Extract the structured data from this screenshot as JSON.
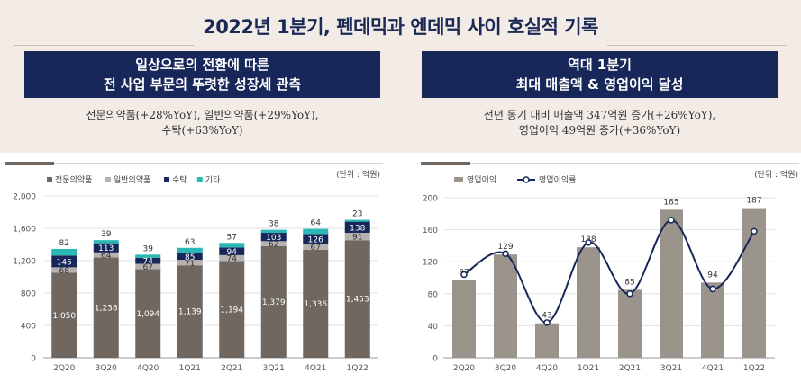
{
  "header": {
    "title": "2022년 1분기, 펜데믹과 엔데믹 사이 호실적 기록"
  },
  "left_section": {
    "banner_line1": "일상으로의 전환에 따른",
    "banner_line2": "전 사업 부문의 뚜렷한 성장세 관측",
    "desc_line1": "전문의약품(+28%YoY), 일반의약품(+29%YoY),",
    "desc_line2": "수탁(+63%YoY)"
  },
  "right_section": {
    "banner_line1": "역대 1분기",
    "banner_line2": "최대 매출액 & 영업이익 달성",
    "desc_line1": "전년 동기 대비 매출액 347억원 증가(+26%YoY),",
    "desc_line2": "영업이익 49억원 증가(+36%YoY)"
  },
  "chart_data": [
    {
      "type": "bar",
      "stacked": true,
      "unit_label": "(단위 : 억원)",
      "categories": [
        "2Q20",
        "3Q20",
        "4Q20",
        "1Q21",
        "2Q21",
        "3Q21",
        "4Q21",
        "1Q22"
      ],
      "series": [
        {
          "name": "전문의약품",
          "color": "#6f6760",
          "values": [
            1050,
            1238,
            1094,
            1139,
            1194,
            1379,
            1336,
            1453
          ]
        },
        {
          "name": "일반의약품",
          "color": "#b5b2b0",
          "values": [
            68,
            64,
            67,
            71,
            74,
            62,
            67,
            91
          ]
        },
        {
          "name": "수탁",
          "color": "#17275a",
          "values": [
            145,
            113,
            74,
            85,
            94,
            103,
            126,
            138
          ]
        },
        {
          "name": "기타",
          "color": "#2bb7b3",
          "values": [
            82,
            39,
            39,
            63,
            57,
            38,
            64,
            23
          ]
        }
      ],
      "ylim": [
        0,
        2000
      ],
      "yticks": [
        "0",
        "400",
        "800",
        "1,200",
        "1,600",
        "2,000"
      ],
      "ytick_values": [
        0,
        400,
        800,
        1200,
        1600,
        2000
      ],
      "legend_position": "top-left",
      "grid": true
    },
    {
      "type": "bar+line",
      "unit_label": "(단위 : 억원)",
      "categories": [
        "2Q20",
        "3Q20",
        "4Q20",
        "1Q21",
        "2Q21",
        "3Q21",
        "4Q21",
        "1Q22"
      ],
      "series": [
        {
          "name": "영업이익",
          "type": "bar",
          "color": "#9b948d",
          "values": [
            97,
            129,
            43,
            138,
            85,
            185,
            94,
            187
          ]
        },
        {
          "name": "영업이익률",
          "type": "line",
          "color": "#17275a",
          "values": [
            null,
            null,
            null,
            null,
            null,
            null,
            null,
            null
          ]
        }
      ],
      "ylim": [
        0,
        200
      ],
      "yticks": [
        "0",
        "40",
        "80",
        "120",
        "160",
        "200"
      ],
      "ytick_values": [
        0,
        40,
        80,
        120,
        160,
        200
      ],
      "legend_position": "top-left",
      "grid": true
    }
  ]
}
